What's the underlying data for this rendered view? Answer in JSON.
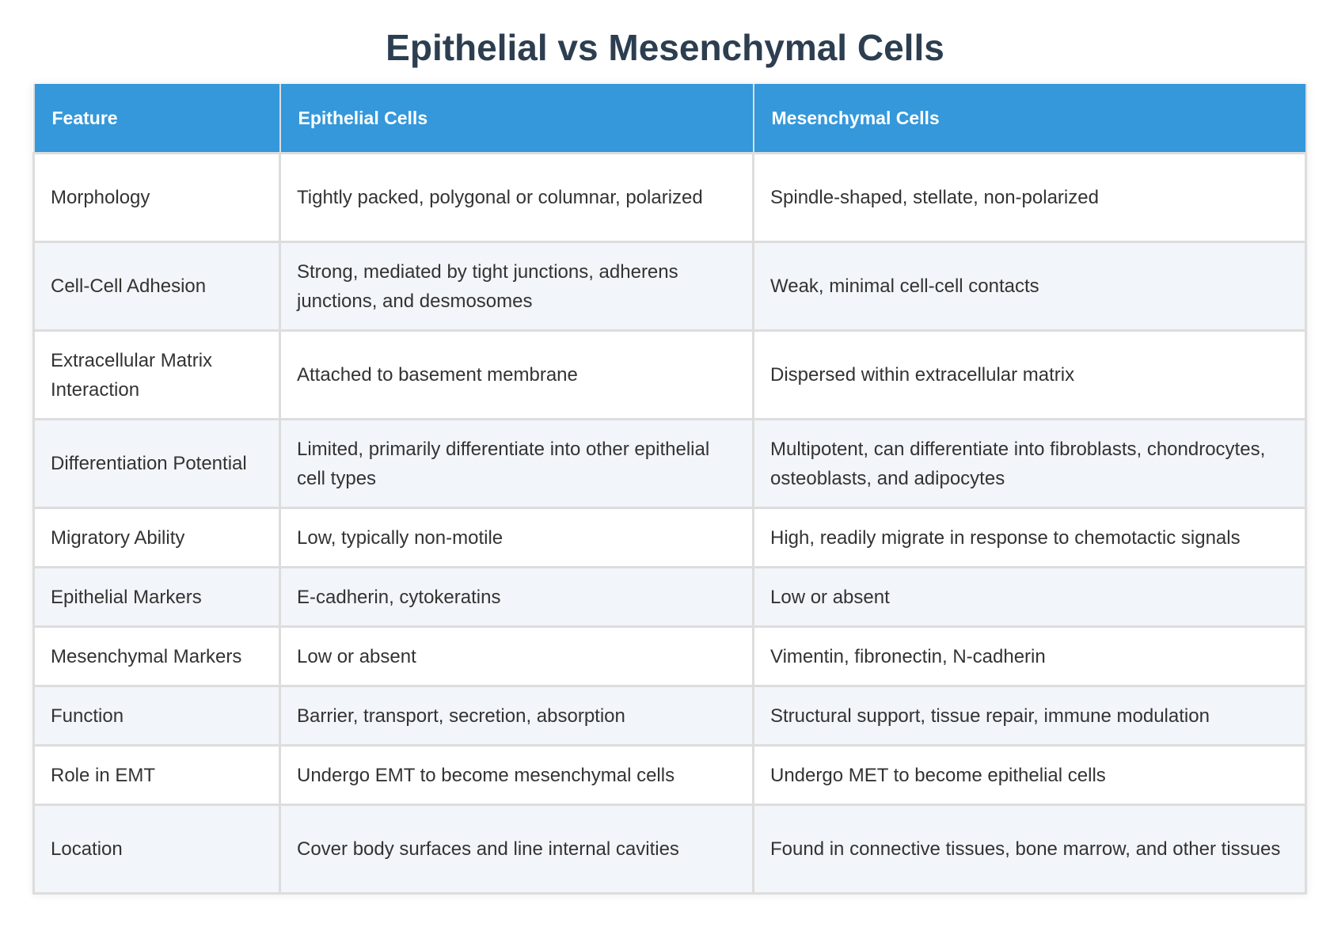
{
  "title": "Epithelial vs Mesenchymal Cells",
  "colors": {
    "title": "#2c3e50",
    "header_bg": "#3498db",
    "header_text": "#ffffff",
    "row_alt_bg": "#f2f5f9",
    "border": "#dddddd"
  },
  "table": {
    "headers": [
      "Feature",
      "Epithelial Cells",
      "Mesenchymal Cells"
    ],
    "rows": [
      [
        "Morphology",
        "Tightly packed, polygonal or columnar, polarized",
        "Spindle-shaped, stellate, non-polarized"
      ],
      [
        "Cell-Cell Adhesion",
        "Strong, mediated by tight junctions, adherens junctions, and desmosomes",
        "Weak, minimal cell-cell contacts"
      ],
      [
        "Extracellular Matrix Interaction",
        "Attached to basement membrane",
        "Dispersed within extracellular matrix"
      ],
      [
        "Differentiation Potential",
        "Limited, primarily differentiate into other epithelial cell types",
        "Multipotent, can differentiate into fibroblasts, chondrocytes, osteoblasts, and adipocytes"
      ],
      [
        "Migratory Ability",
        "Low, typically non-motile",
        "High, readily migrate in response to chemotactic signals"
      ],
      [
        "Epithelial Markers",
        "E-cadherin, cytokeratins",
        "Low or absent"
      ],
      [
        "Mesenchymal Markers",
        "Low or absent",
        "Vimentin, fibronectin, N-cadherin"
      ],
      [
        "Function",
        "Barrier, transport, secretion, absorption",
        "Structural support, tissue repair, immune modulation"
      ],
      [
        "Role in EMT",
        "Undergo EMT to become mesenchymal cells",
        "Undergo MET to become epithelial cells"
      ],
      [
        "Location",
        "Cover body surfaces and line internal cavities",
        "Found in connective tissues, bone marrow, and other tissues"
      ]
    ]
  }
}
